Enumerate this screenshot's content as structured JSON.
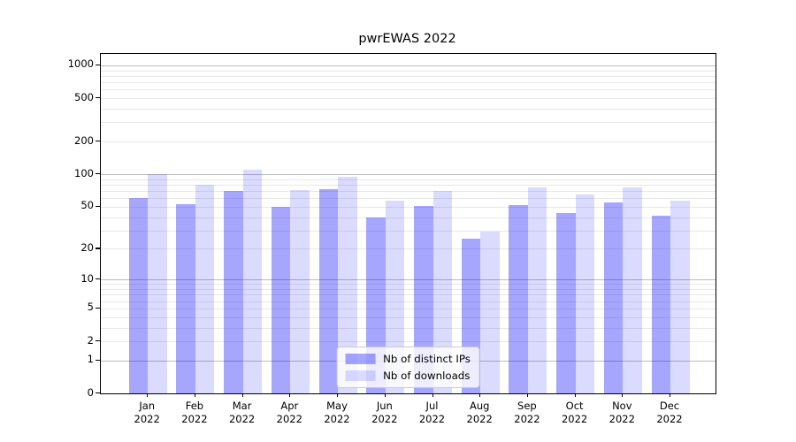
{
  "title": "pwrEWAS 2022",
  "colors": {
    "ips": "rgba(0,0,255,0.35)",
    "downloads": "rgba(0,0,255,0.14)",
    "grid_major": "#bdbdbd",
    "grid_minor": "#e8e8e8",
    "axis": "#000000"
  },
  "legend": {
    "items": [
      {
        "label": "Nb of distinct IPs",
        "series": "ips"
      },
      {
        "label": "Nb of downloads",
        "series": "downloads"
      }
    ]
  },
  "y_axis": {
    "tick_values": [
      0,
      1,
      2,
      5,
      10,
      20,
      50,
      100,
      200,
      500,
      1000
    ],
    "major_gridlines": [
      1,
      10,
      100,
      1000
    ],
    "minor_gridlines": [
      2,
      3,
      4,
      5,
      6,
      7,
      8,
      9,
      20,
      30,
      40,
      50,
      60,
      70,
      80,
      90,
      200,
      300,
      400,
      500,
      600,
      700,
      800,
      900
    ]
  },
  "x_axis": {
    "months": [
      "Jan",
      "Feb",
      "Mar",
      "Apr",
      "May",
      "Jun",
      "Jul",
      "Aug",
      "Sep",
      "Oct",
      "Nov",
      "Dec"
    ],
    "year": "2022"
  },
  "chart_data": {
    "type": "bar",
    "title": "pwrEWAS 2022",
    "categories": [
      "Jan 2022",
      "Feb 2022",
      "Mar 2022",
      "Apr 2022",
      "May 2022",
      "Jun 2022",
      "Jul 2022",
      "Aug 2022",
      "Sep 2022",
      "Oct 2022",
      "Nov 2022",
      "Dec 2022"
    ],
    "series": [
      {
        "name": "Nb of distinct IPs",
        "key": "ips",
        "values": [
          60,
          53,
          70,
          50,
          73,
          40,
          51,
          25,
          52,
          44,
          55,
          41
        ]
      },
      {
        "name": "Nb of downloads",
        "key": "downloads",
        "values": [
          100,
          80,
          110,
          71,
          95,
          57,
          70,
          29,
          76,
          65,
          75,
          57
        ]
      }
    ],
    "yscale": "log1p",
    "ylim": [
      0,
      1270
    ],
    "grid": true,
    "legend_position": "lower center"
  }
}
